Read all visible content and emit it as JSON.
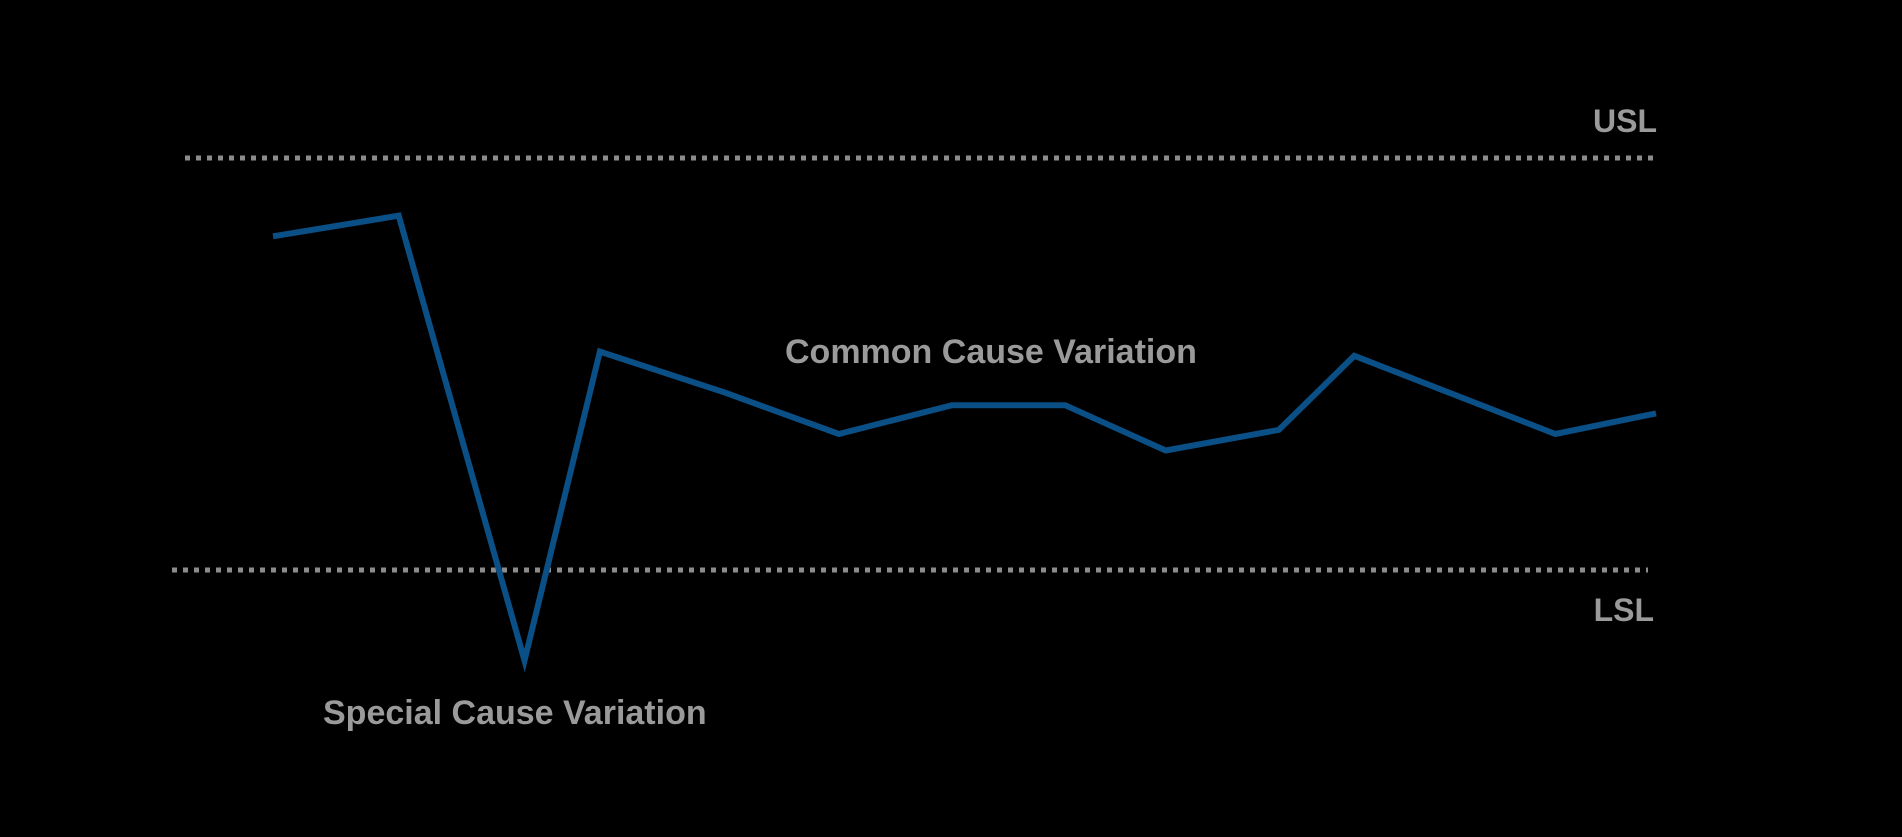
{
  "chart_data": {
    "type": "line",
    "background": "#000000",
    "line_color": "#0a4f85",
    "limit_color": "#8c8c8c",
    "text_color": "#9a9a9a",
    "grid": false,
    "xlim": [
      0,
      11
    ],
    "ylim": [
      0,
      1
    ],
    "usl": {
      "label": "USL",
      "value": 1.0
    },
    "lsl": {
      "label": "LSL",
      "value": 0.0
    },
    "series": [
      {
        "x": [
          0,
          1,
          2,
          2.6,
          3.6,
          4.5,
          5.4,
          6.3,
          7.1,
          8.0,
          8.6,
          10.2,
          11.0
        ],
        "values": [
          0.81,
          0.86,
          -0.22,
          0.53,
          0.43,
          0.33,
          0.4,
          0.4,
          0.29,
          0.34,
          0.52,
          0.33,
          0.38
        ]
      }
    ],
    "annotations": {
      "common": "Common Cause Variation",
      "special": "Special Cause Variation"
    }
  }
}
